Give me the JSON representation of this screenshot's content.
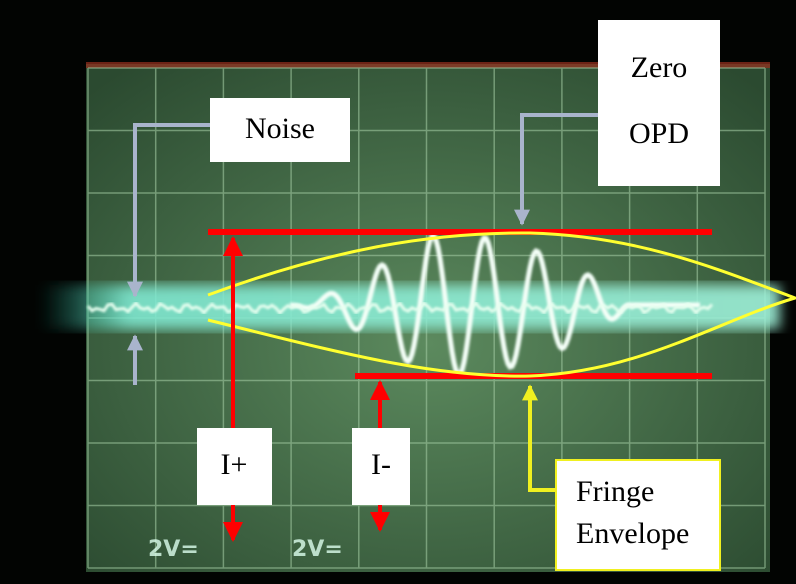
{
  "annotations": {
    "noise": "Noise",
    "zero_opd": [
      "Zero",
      "OPD"
    ],
    "i_plus": "I+",
    "i_minus": "I-",
    "fringe_envelope": [
      "Fringe",
      "Envelope"
    ]
  },
  "scope_labels": [
    "2V=",
    "2V="
  ]
}
